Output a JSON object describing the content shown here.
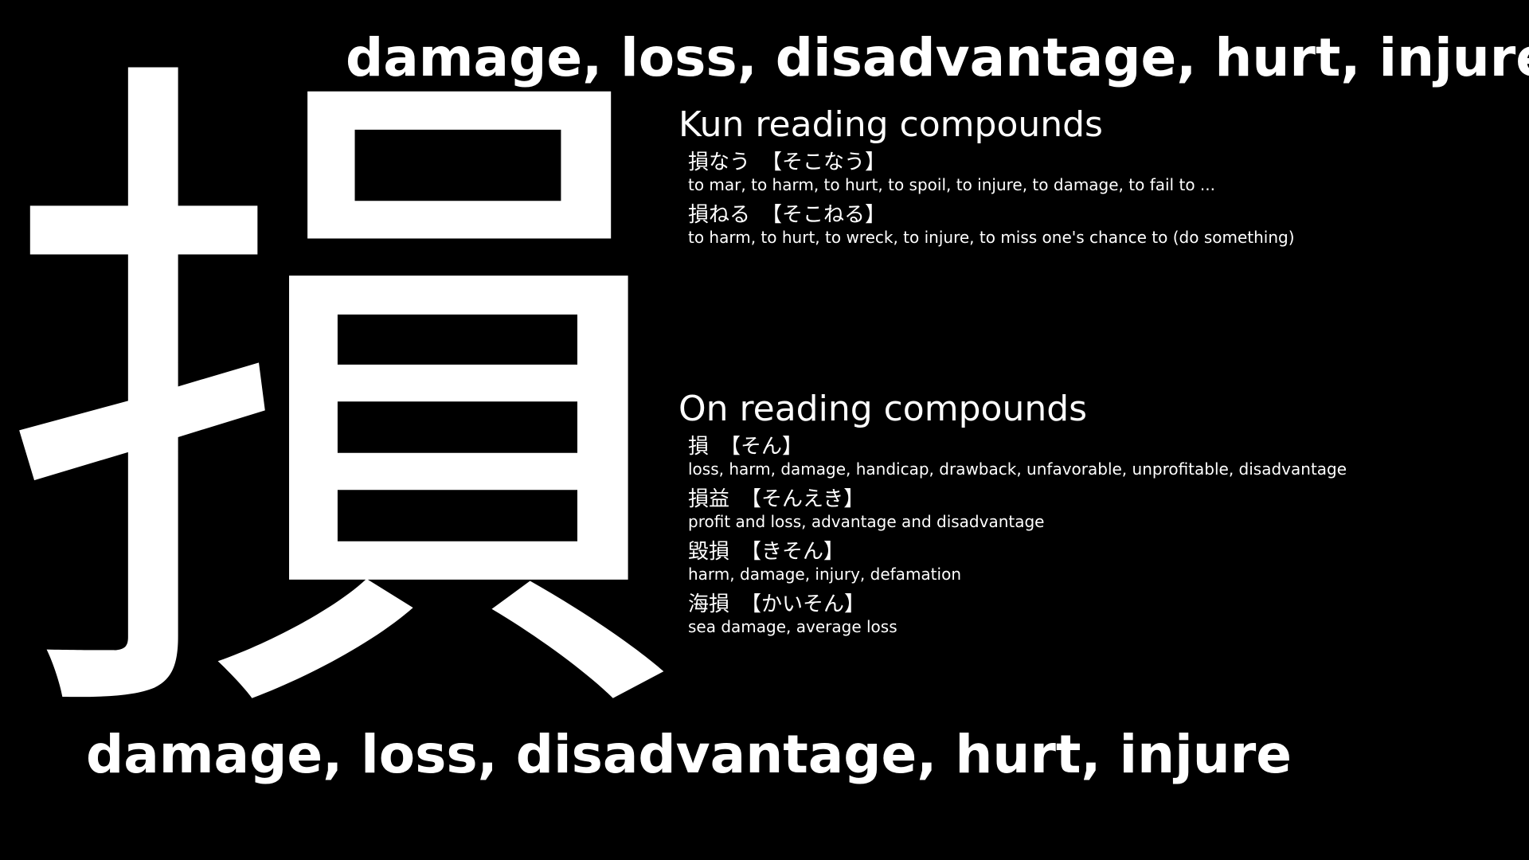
{
  "kanji": "損",
  "meaning": "damage, loss, disadvantage, hurt, injure",
  "kun": {
    "heading": "Kun reading compounds",
    "entries": [
      {
        "term": "損なう",
        "reading": "【そこなう】",
        "gloss": "to mar, to harm, to hurt, to spoil, to injure, to damage, to fail to ..."
      },
      {
        "term": "損ねる",
        "reading": "【そこねる】",
        "gloss": "to harm, to hurt, to wreck, to injure, to miss one's chance to (do something)"
      }
    ]
  },
  "on": {
    "heading": "On reading compounds",
    "entries": [
      {
        "term": "損",
        "reading": "【そん】",
        "gloss": "loss, harm, damage, handicap, drawback, unfavorable, unprofitable, disadvantage"
      },
      {
        "term": "損益",
        "reading": "【そんえき】",
        "gloss": "profit and loss, advantage and disadvantage"
      },
      {
        "term": "毀損",
        "reading": "【きそん】",
        "gloss": "harm, damage, injury, defamation"
      },
      {
        "term": "海損",
        "reading": "【かいそん】",
        "gloss": "sea damage, average loss"
      }
    ]
  },
  "colors": {
    "background": "#000000",
    "text": "#ffffff"
  }
}
